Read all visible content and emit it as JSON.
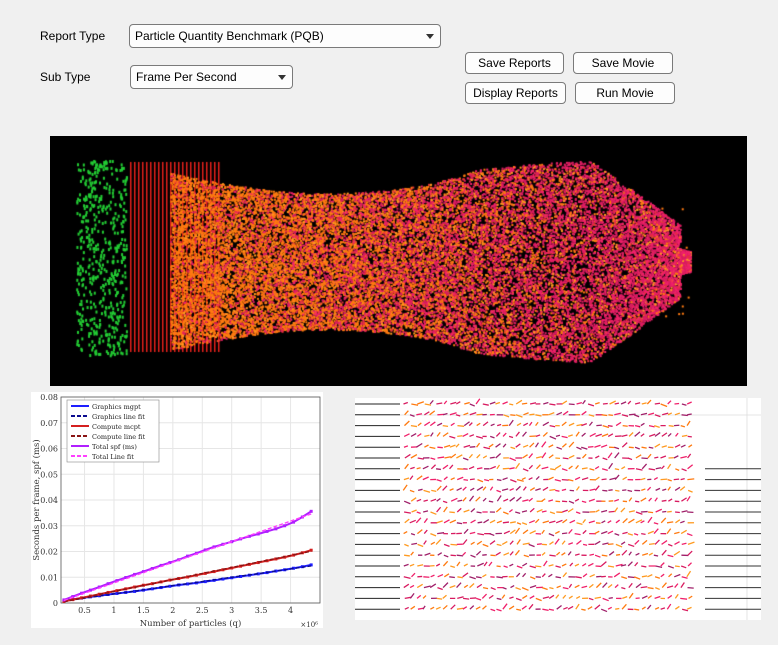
{
  "form": {
    "report_type_label": "Report Type",
    "report_type_value": "Particle Quantity Benchmark (PQB)",
    "sub_type_label": "Sub Type",
    "sub_type_value": "Frame Per Second"
  },
  "buttons": {
    "save_reports": "Save Reports",
    "save_movie": "Save Movie",
    "display_reports": "Display Reports",
    "run_movie": "Run Movie"
  },
  "colors": {
    "wall_particles": "#22cc33",
    "grid_lines": "#e8201a",
    "particle_orange": "#ff7a10",
    "particle_pink": "#f0206a",
    "particle_magenta": "#d81b60",
    "series_blue": "#1f1fff",
    "series_red": "#d41f1f",
    "series_magenta": "#b01fff"
  },
  "chart_data": {
    "type": "line",
    "title": "",
    "xlabel": "Number of particles (q)",
    "ylabel": "Seconds per frame, spf (ms)",
    "x_multiplier": "×10⁶",
    "xlim": [
      0.1,
      4.5
    ],
    "ylim": [
      0,
      0.08
    ],
    "xticks": [
      "0.5",
      "1",
      "1.5",
      "2",
      "2.5",
      "3",
      "3.5",
      "4"
    ],
    "yticks": [
      "0",
      "0.01",
      "0.02",
      "0.03",
      "0.04",
      "0.05",
      "0.06",
      "0.07",
      "0.08"
    ],
    "grid": true,
    "legend_position": "top-left",
    "legend": [
      "Graphics mgpt",
      "Graphics line fit",
      "Compute mcpt",
      "Compute line fit",
      "Total spf (ms)",
      "Total Line fit"
    ],
    "x": [
      0.15,
      0.3,
      0.45,
      0.6,
      0.75,
      0.9,
      1.05,
      1.2,
      1.35,
      1.5,
      1.65,
      1.8,
      1.95,
      2.1,
      2.25,
      2.4,
      2.55,
      2.7,
      2.85,
      3.0,
      3.15,
      3.3,
      3.45,
      3.6,
      3.75,
      3.9,
      4.05,
      4.2,
      4.35
    ],
    "series": [
      {
        "name": "Graphics mgpt",
        "color": "#1f1fff",
        "style": "solid-marker",
        "values": [
          0.0008,
          0.0014,
          0.0019,
          0.0024,
          0.0028,
          0.0033,
          0.0037,
          0.0041,
          0.0045,
          0.005,
          0.0055,
          0.006,
          0.0065,
          0.007,
          0.0074,
          0.0078,
          0.0083,
          0.0088,
          0.0093,
          0.0098,
          0.0103,
          0.0108,
          0.0113,
          0.0118,
          0.0124,
          0.0129,
          0.0135,
          0.0141,
          0.0148
        ]
      },
      {
        "name": "Graphics line fit",
        "color": "#0b0b8f",
        "style": "dashed",
        "values": [
          0.0007,
          0.0012,
          0.0017,
          0.0022,
          0.0027,
          0.0032,
          0.0037,
          0.0041,
          0.0046,
          0.0051,
          0.0056,
          0.0061,
          0.0066,
          0.0071,
          0.0075,
          0.008,
          0.0085,
          0.009,
          0.0095,
          0.01,
          0.0105,
          0.0109,
          0.0114,
          0.0119,
          0.0124,
          0.0129,
          0.0134,
          0.0139,
          0.0144
        ]
      },
      {
        "name": "Compute mcpt",
        "color": "#d41f1f",
        "style": "solid-marker",
        "values": [
          0.0006,
          0.0013,
          0.002,
          0.0027,
          0.0034,
          0.0041,
          0.0048,
          0.0055,
          0.0062,
          0.0069,
          0.0075,
          0.0082,
          0.0089,
          0.0095,
          0.0101,
          0.0108,
          0.0115,
          0.0122,
          0.0129,
          0.0136,
          0.0143,
          0.015,
          0.0157,
          0.0164,
          0.0171,
          0.0178,
          0.0186,
          0.0195,
          0.0205
        ]
      },
      {
        "name": "Compute line fit",
        "color": "#8a1414",
        "style": "dashed",
        "values": [
          0.0005,
          0.0012,
          0.0019,
          0.0026,
          0.0033,
          0.004,
          0.0047,
          0.0054,
          0.0061,
          0.0068,
          0.0075,
          0.0082,
          0.0089,
          0.0096,
          0.0103,
          0.011,
          0.0117,
          0.0124,
          0.0131,
          0.0138,
          0.0145,
          0.0152,
          0.0159,
          0.0166,
          0.0173,
          0.018,
          0.0187,
          0.0194,
          0.0201
        ]
      },
      {
        "name": "Total spf (ms)",
        "color": "#b01fff",
        "style": "solid-marker",
        "values": [
          0.0012,
          0.0025,
          0.0038,
          0.005,
          0.0062,
          0.0075,
          0.0087,
          0.0099,
          0.0111,
          0.0122,
          0.0134,
          0.0146,
          0.0157,
          0.0168,
          0.0182,
          0.0193,
          0.0206,
          0.0218,
          0.0228,
          0.0238,
          0.0249,
          0.0259,
          0.0268,
          0.0278,
          0.0288,
          0.03,
          0.0314,
          0.0334,
          0.0356
        ]
      },
      {
        "name": "Total Line fit",
        "color": "#ff40ff",
        "style": "dashed",
        "values": [
          0.001,
          0.0022,
          0.0034,
          0.0046,
          0.0058,
          0.007,
          0.0082,
          0.0094,
          0.0106,
          0.0118,
          0.013,
          0.0142,
          0.0154,
          0.0166,
          0.0178,
          0.019,
          0.0202,
          0.0214,
          0.0226,
          0.0238,
          0.025,
          0.0262,
          0.0274,
          0.0286,
          0.0298,
          0.031,
          0.0322,
          0.0334,
          0.0346
        ]
      }
    ]
  }
}
